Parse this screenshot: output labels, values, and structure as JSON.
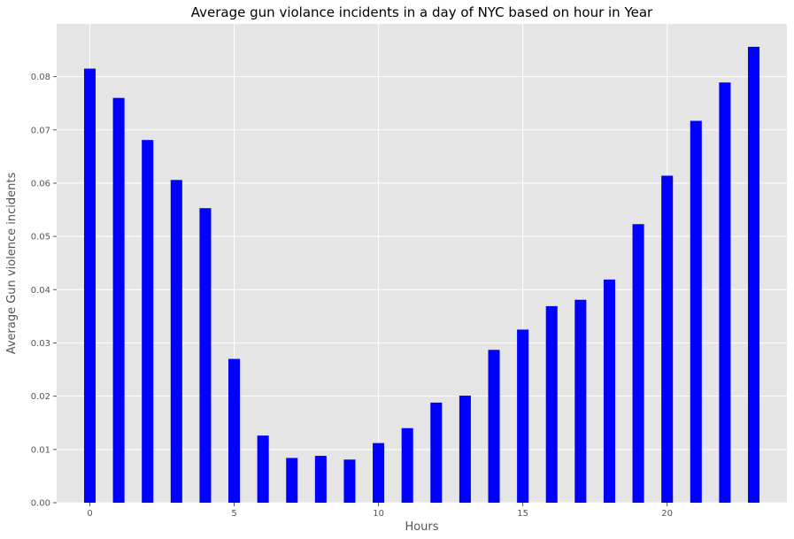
{
  "chart_data": {
    "type": "bar",
    "title": "Average gun violance incidents in a day of NYC based on hour in Year",
    "xlabel": "Hours",
    "ylabel": "Average Gun violence incidents",
    "x": [
      0,
      1,
      2,
      3,
      4,
      5,
      6,
      7,
      8,
      9,
      10,
      11,
      12,
      13,
      14,
      15,
      16,
      17,
      18,
      19,
      20,
      21,
      22,
      23
    ],
    "values": [
      0.0815,
      0.076,
      0.0681,
      0.0606,
      0.0553,
      0.027,
      0.0126,
      0.0084,
      0.0088,
      0.0081,
      0.0112,
      0.014,
      0.0188,
      0.0201,
      0.0287,
      0.0325,
      0.0369,
      0.0381,
      0.0419,
      0.0523,
      0.0614,
      0.0717,
      0.0789,
      0.0856
    ],
    "xlim": [
      -1.15,
      24.15
    ],
    "ylim": [
      0,
      0.0899
    ],
    "xticks": [
      0,
      5,
      10,
      15,
      20
    ],
    "xtick_labels": [
      "0",
      "5",
      "10",
      "15",
      "20"
    ],
    "yticks": [
      0,
      0.01,
      0.02,
      0.03,
      0.04,
      0.05,
      0.06,
      0.07,
      0.08
    ],
    "ytick_labels": [
      "0.00",
      "0.01",
      "0.02",
      "0.03",
      "0.04",
      "0.05",
      "0.06",
      "0.07",
      "0.08"
    ],
    "grid": true,
    "colors": {
      "bar": "#0000ff",
      "plot_background": "#e5e5e5",
      "grid": "#ffffff",
      "text": "#555555"
    }
  }
}
